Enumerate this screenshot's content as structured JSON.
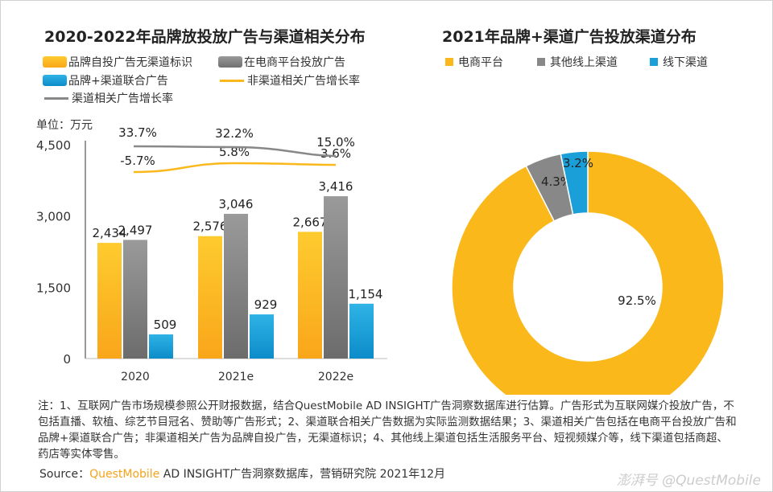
{
  "chart_data": [
    {
      "type": "bar",
      "title": "2020-2022年品牌放投放广告与渠道相关分布",
      "unit_label": "单位：万元",
      "categories": [
        "2020",
        "2021e",
        "2022e"
      ],
      "yticks": [
        "0",
        "1,500",
        "3,000",
        "4,500"
      ],
      "ylim": [
        0,
        4500
      ],
      "series": [
        {
          "name": "品牌自投广告无渠道标识",
          "values": [
            2434,
            2576,
            2667
          ],
          "labels": [
            "2,434",
            "2,576",
            "2,667"
          ],
          "color": "#fbb81b"
        },
        {
          "name": "在电商平台投放广告",
          "values": [
            2497,
            3046,
            3416
          ],
          "labels": [
            "2,497",
            "3,046",
            "3,416"
          ],
          "color": "#888888"
        },
        {
          "name": "品牌+渠道联合广告",
          "values": [
            509,
            929,
            1154
          ],
          "labels": [
            "509",
            "929",
            "1,154"
          ],
          "color": "#1a9fd8"
        }
      ],
      "lines": [
        {
          "name": "非渠道相关广告增长率",
          "values": [
            -5.7,
            5.8,
            3.6
          ],
          "labels": [
            "-5.7%",
            "5.8%",
            "3.6%"
          ],
          "color": "#fbb81b"
        },
        {
          "name": "渠道相关广告增长率",
          "values": [
            33.7,
            32.2,
            15.0
          ],
          "labels": [
            "33.7%",
            "32.2%",
            "15.0%"
          ],
          "color": "#888888"
        }
      ],
      "legend": "top"
    },
    {
      "type": "pie",
      "title": "2021年品牌+渠道广告投放渠道分布",
      "categories": [
        "电商平台",
        "其他线上渠道",
        "线下渠道"
      ],
      "values": [
        92.5,
        4.3,
        3.2
      ],
      "labels": [
        "92.5%",
        "4.3%",
        "3.2%"
      ],
      "colors": [
        "#fbb81b",
        "#888888",
        "#1a9fd8"
      ],
      "legend": "top"
    }
  ],
  "notes": "注：1、互联网广告市场规模参照公开财报数据，结合QuestMobile AD INSIGHT广告洞察数据库进行估算。广告形式为互联网媒介投放广告，不包括直播、软植、综艺节目冠名、赞助等广告形式；2、渠道联合相关广告数据为实际监测数据结果；3、渠道相关广告包括在电商平台投放广告和品牌+渠道联合广告；非渠道相关广告为品牌自投广告，无渠道标识；4、其他线上渠道包括生活服务平台、短视频媒介等，线下渠道包括商超、药店等实体零售。",
  "source": {
    "label": "Source：",
    "brand": "QuestMobile",
    "text": " AD INSIGHT广告洞察数据库，营销研究院 2021年12月"
  },
  "watermark": "澎湃号 @QuestMobile"
}
